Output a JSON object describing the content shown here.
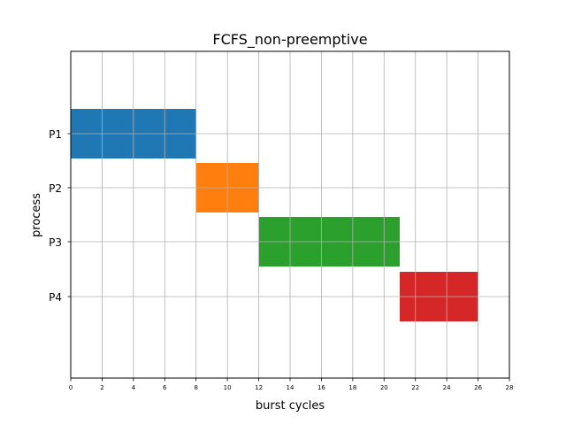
{
  "chart_data": {
    "type": "bar",
    "orientation": "horizontal",
    "title": "FCFS_non-preemptive",
    "xlabel": "burst cycles",
    "ylabel": "process",
    "xlim": [
      0,
      28
    ],
    "x_ticks": [
      0,
      2,
      4,
      6,
      8,
      10,
      12,
      14,
      16,
      18,
      20,
      22,
      24,
      26,
      28
    ],
    "grid": true,
    "categories": [
      "P1",
      "P2",
      "P3",
      "P4"
    ],
    "series": [
      {
        "category": "P1",
        "start": 0,
        "end": 8,
        "color": "#1f77b4"
      },
      {
        "category": "P2",
        "start": 8,
        "end": 12,
        "color": "#ff7f0e"
      },
      {
        "category": "P3",
        "start": 12,
        "end": 21,
        "color": "#2ca02c"
      },
      {
        "category": "P4",
        "start": 21,
        "end": 26,
        "color": "#d62728"
      }
    ]
  }
}
